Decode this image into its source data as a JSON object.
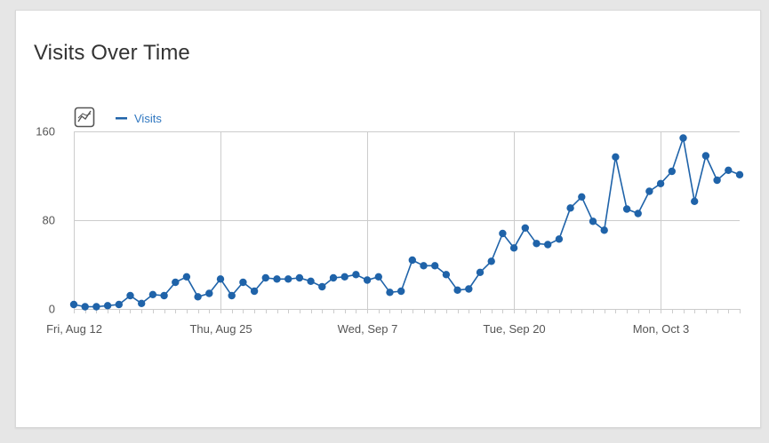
{
  "widget": {
    "title": "Visits Over Time"
  },
  "chart_icon": "line-chart-toggle-icon",
  "colors": {
    "series": "#1f63a9",
    "legend_text": "#2f77c0",
    "grid": "#cccccc",
    "axis_text": "#555555"
  },
  "chart_data": {
    "type": "line",
    "title": "Visits Over Time",
    "xlabel": "",
    "ylabel": "",
    "ylim": [
      0,
      160
    ],
    "y_ticks": [
      0,
      80,
      160
    ],
    "x_tick_labels": [
      {
        "index": 0,
        "label": "Fri, Aug 12"
      },
      {
        "index": 13,
        "label": "Thu, Aug 25"
      },
      {
        "index": 26,
        "label": "Wed, Sep 7"
      },
      {
        "index": 39,
        "label": "Tue, Sep 20"
      },
      {
        "index": 52,
        "label": "Mon, Oct 3"
      }
    ],
    "grid": true,
    "legend_position": "top-left",
    "series": [
      {
        "name": "Visits",
        "values": [
          4,
          2,
          2,
          3,
          4,
          12,
          5,
          13,
          12,
          24,
          29,
          11,
          14,
          27,
          12,
          24,
          16,
          28,
          27,
          27,
          28,
          25,
          20,
          28,
          29,
          31,
          26,
          29,
          15,
          16,
          44,
          39,
          39,
          31,
          17,
          18,
          33,
          43,
          68,
          55,
          73,
          59,
          58,
          63,
          91,
          101,
          79,
          71,
          137,
          90,
          86,
          106,
          113,
          124,
          154,
          97,
          138,
          116,
          125,
          121
        ]
      }
    ]
  }
}
